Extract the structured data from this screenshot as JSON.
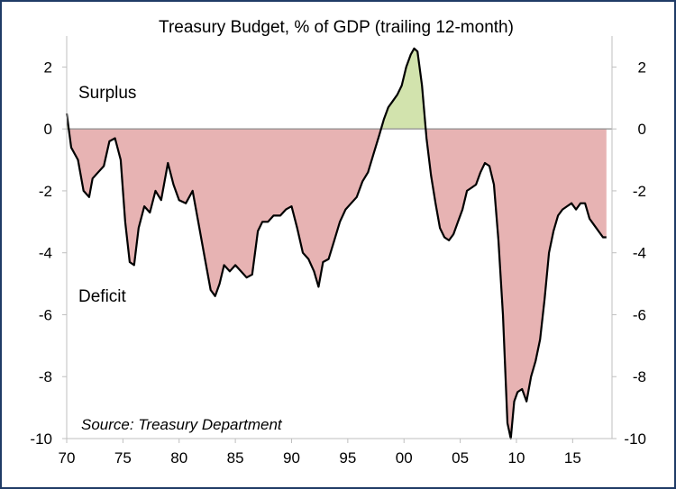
{
  "chart_data": {
    "type": "area",
    "title": "Treasury Budget, % of GDP (trailing 12-month)",
    "xlabel": "",
    "ylabel": "",
    "x_tick_labels": [
      "70",
      "75",
      "80",
      "85",
      "90",
      "95",
      "00",
      "05",
      "10",
      "15"
    ],
    "x_tick_years": [
      1970,
      1975,
      1980,
      1985,
      1990,
      1995,
      2000,
      2005,
      2010,
      2015
    ],
    "xlim": [
      1970,
      2018.5
    ],
    "ylim": [
      -10,
      3
    ],
    "y_ticks": [
      2,
      0,
      -2,
      -4,
      -6,
      -8,
      -10
    ],
    "y_tick_labels": [
      "2",
      "0",
      "-2",
      "-4",
      "-6",
      "-8",
      "-10"
    ],
    "grid": false,
    "annotations": {
      "surplus": "Surplus",
      "deficit": "Deficit",
      "source": "Source: Treasury Department"
    },
    "colors": {
      "line": "#000000",
      "deficit_fill": "#e7b3b3",
      "surplus_fill": "#d2e3ad",
      "zero_line": "#8e8e8e",
      "frame": "#1f3b66",
      "axis": "#bfbfbf"
    },
    "series": [
      {
        "x": [
          1970.0,
          1970.4,
          1971.0,
          1971.5,
          1972.0,
          1972.3,
          1972.8,
          1973.3,
          1973.8,
          1974.3,
          1974.8,
          1975.2,
          1975.6,
          1976.0,
          1976.4,
          1976.9,
          1977.4,
          1977.9,
          1978.4,
          1979.0,
          1979.5,
          1980.0,
          1980.6,
          1981.2,
          1981.8,
          1982.3,
          1982.8,
          1983.2,
          1983.6,
          1984.0,
          1984.5,
          1985.0,
          1985.5,
          1986.0,
          1986.5,
          1987.0,
          1987.4,
          1987.9,
          1988.4,
          1989.0,
          1989.5,
          1990.0,
          1990.5,
          1991.0,
          1991.5,
          1992.0,
          1992.4,
          1992.8,
          1993.3,
          1993.8,
          1994.3,
          1994.8,
          1995.3,
          1995.8,
          1996.3,
          1996.8,
          1997.3,
          1997.8,
          1998.2,
          1998.6,
          1999.0,
          1999.4,
          1999.8,
          2000.2,
          2000.6,
          2000.9,
          2001.2,
          2001.6,
          2002.0,
          2002.4,
          2002.8,
          2003.2,
          2003.6,
          2004.0,
          2004.4,
          2004.8,
          2005.2,
          2005.6,
          2006.0,
          2006.4,
          2006.8,
          2007.2,
          2007.6,
          2008.0,
          2008.4,
          2008.8,
          2009.2,
          2009.5,
          2009.8,
          2010.1,
          2010.5,
          2010.9,
          2011.3,
          2011.7,
          2012.1,
          2012.5,
          2012.9,
          2013.3,
          2013.7,
          2014.1,
          2014.5,
          2014.9,
          2015.3,
          2015.7,
          2016.1,
          2016.5,
          2016.9,
          2017.3,
          2017.7,
          2018.0
        ],
        "y": [
          0.5,
          -0.6,
          -1.0,
          -2.0,
          -2.2,
          -1.6,
          -1.4,
          -1.2,
          -0.4,
          -0.3,
          -1.0,
          -3.0,
          -4.3,
          -4.4,
          -3.2,
          -2.5,
          -2.7,
          -2.0,
          -2.3,
          -1.1,
          -1.8,
          -2.3,
          -2.4,
          -2.0,
          -3.2,
          -4.2,
          -5.2,
          -5.4,
          -5.0,
          -4.4,
          -4.6,
          -4.4,
          -4.6,
          -4.8,
          -4.7,
          -3.3,
          -3.0,
          -3.0,
          -2.8,
          -2.8,
          -2.6,
          -2.5,
          -3.2,
          -4.0,
          -4.2,
          -4.6,
          -5.1,
          -4.3,
          -4.2,
          -3.6,
          -3.0,
          -2.6,
          -2.4,
          -2.2,
          -1.7,
          -1.4,
          -0.8,
          -0.2,
          0.3,
          0.7,
          0.9,
          1.1,
          1.4,
          2.0,
          2.4,
          2.6,
          2.5,
          1.4,
          -0.3,
          -1.5,
          -2.4,
          -3.2,
          -3.5,
          -3.6,
          -3.4,
          -3.0,
          -2.6,
          -2.0,
          -1.9,
          -1.8,
          -1.4,
          -1.1,
          -1.2,
          -1.8,
          -3.6,
          -6.0,
          -9.5,
          -10.0,
          -8.8,
          -8.5,
          -8.4,
          -8.8,
          -8.0,
          -7.5,
          -6.8,
          -5.5,
          -4.0,
          -3.3,
          -2.8,
          -2.6,
          -2.5,
          -2.4,
          -2.6,
          -2.4,
          -2.4,
          -2.9,
          -3.1,
          -3.3,
          -3.5,
          -3.5
        ]
      }
    ]
  }
}
